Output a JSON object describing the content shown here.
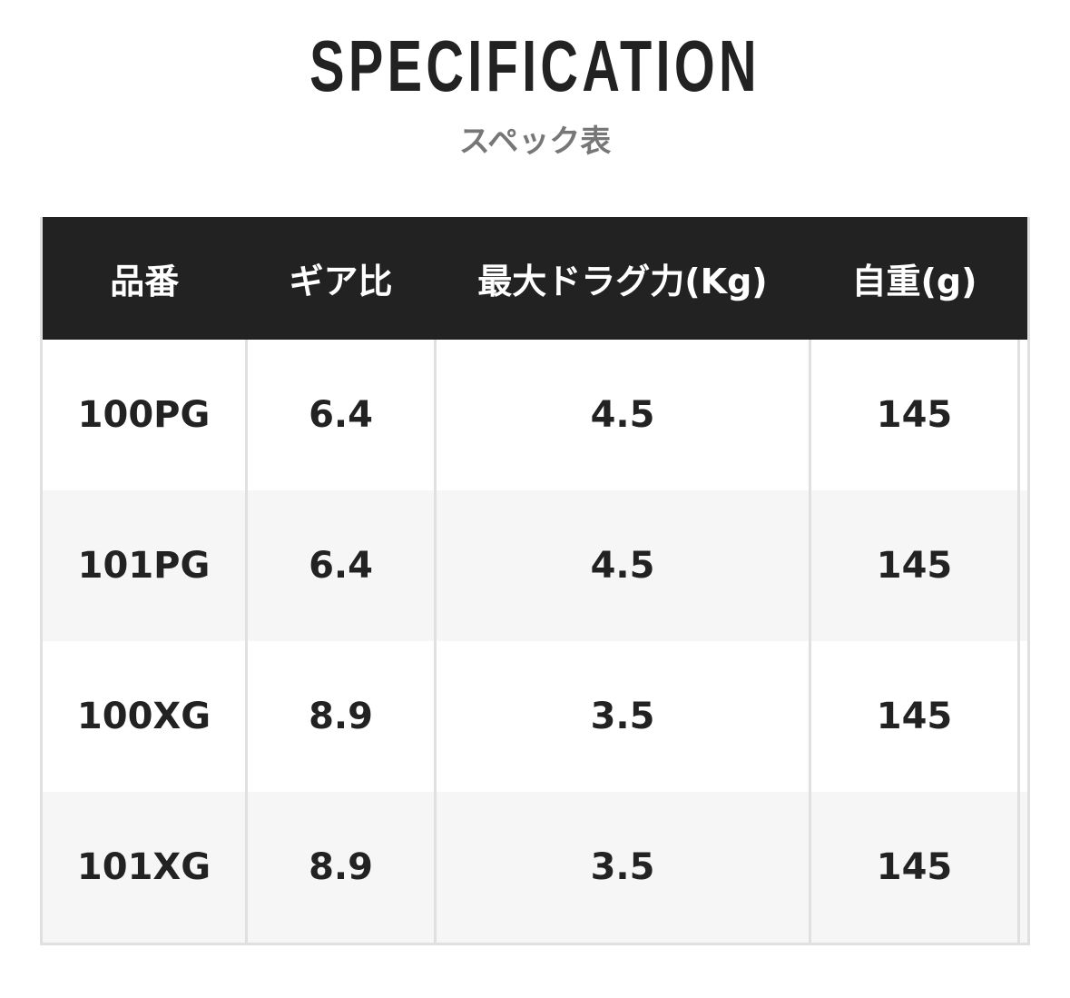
{
  "heading": {
    "title": "SPECIFICATION",
    "subtitle": "スペック表"
  },
  "table": {
    "headers": [
      "品番",
      "ギア比",
      "最大ドラグ力(Kg)",
      "自重(g)"
    ],
    "rows": [
      [
        "100PG",
        "6.4",
        "4.5",
        "145"
      ],
      [
        "101PG",
        "6.4",
        "4.5",
        "145"
      ],
      [
        "100XG",
        "8.9",
        "3.5",
        "145"
      ],
      [
        "101XG",
        "8.9",
        "3.5",
        "145"
      ]
    ]
  },
  "colors": {
    "header_bg": "#222222",
    "header_text": "#ffffff",
    "alt_row": "#f6f6f6",
    "border": "#e0e0e0",
    "subtitle": "#777777"
  }
}
